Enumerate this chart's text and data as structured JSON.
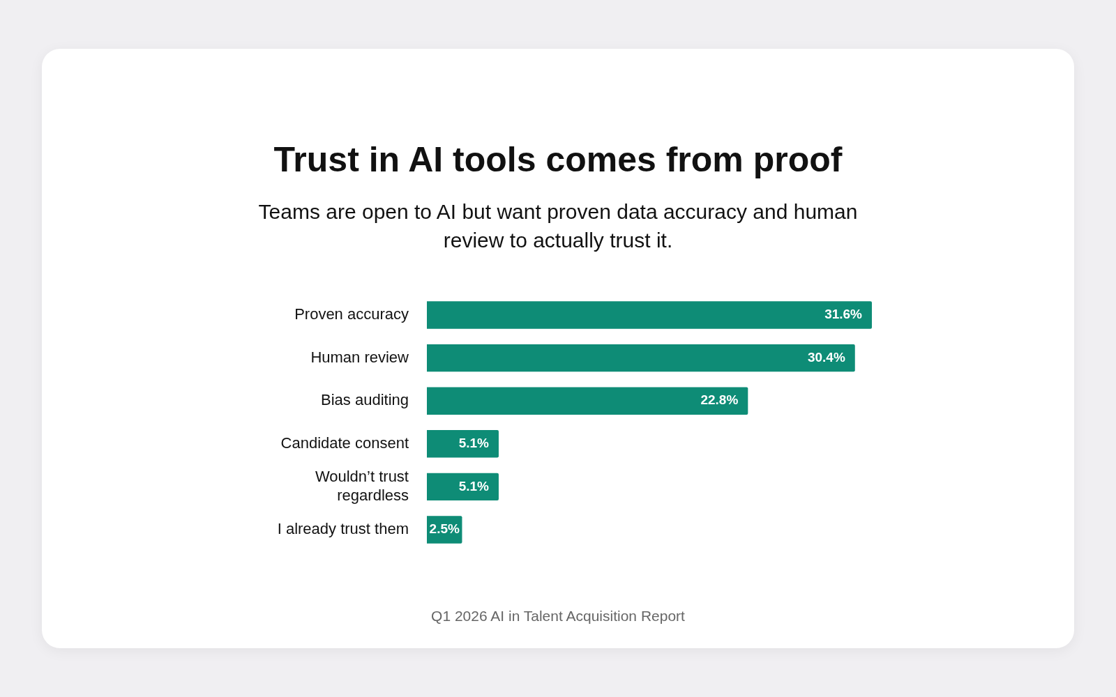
{
  "chart_data": {
    "type": "bar",
    "orientation": "horizontal",
    "title": "Trust in AI tools comes from proof",
    "subtitle": "Teams are open to AI but want proven data accuracy and human review to actually trust it.",
    "categories": [
      "Proven accuracy",
      "Human review",
      "Bias auditing",
      "Candidate consent",
      "Wouldn’t trust regardless",
      "I already trust them"
    ],
    "values": [
      31.6,
      30.4,
      22.8,
      5.1,
      5.1,
      2.5
    ],
    "value_labels": [
      "31.6%",
      "30.4%",
      "22.8%",
      "5.1%",
      "5.1%",
      "2.5%"
    ],
    "color": "#0e8c76",
    "legend": false,
    "annotations": [
      "Q1 2026 AI in Talent Acquisition Report"
    ]
  }
}
